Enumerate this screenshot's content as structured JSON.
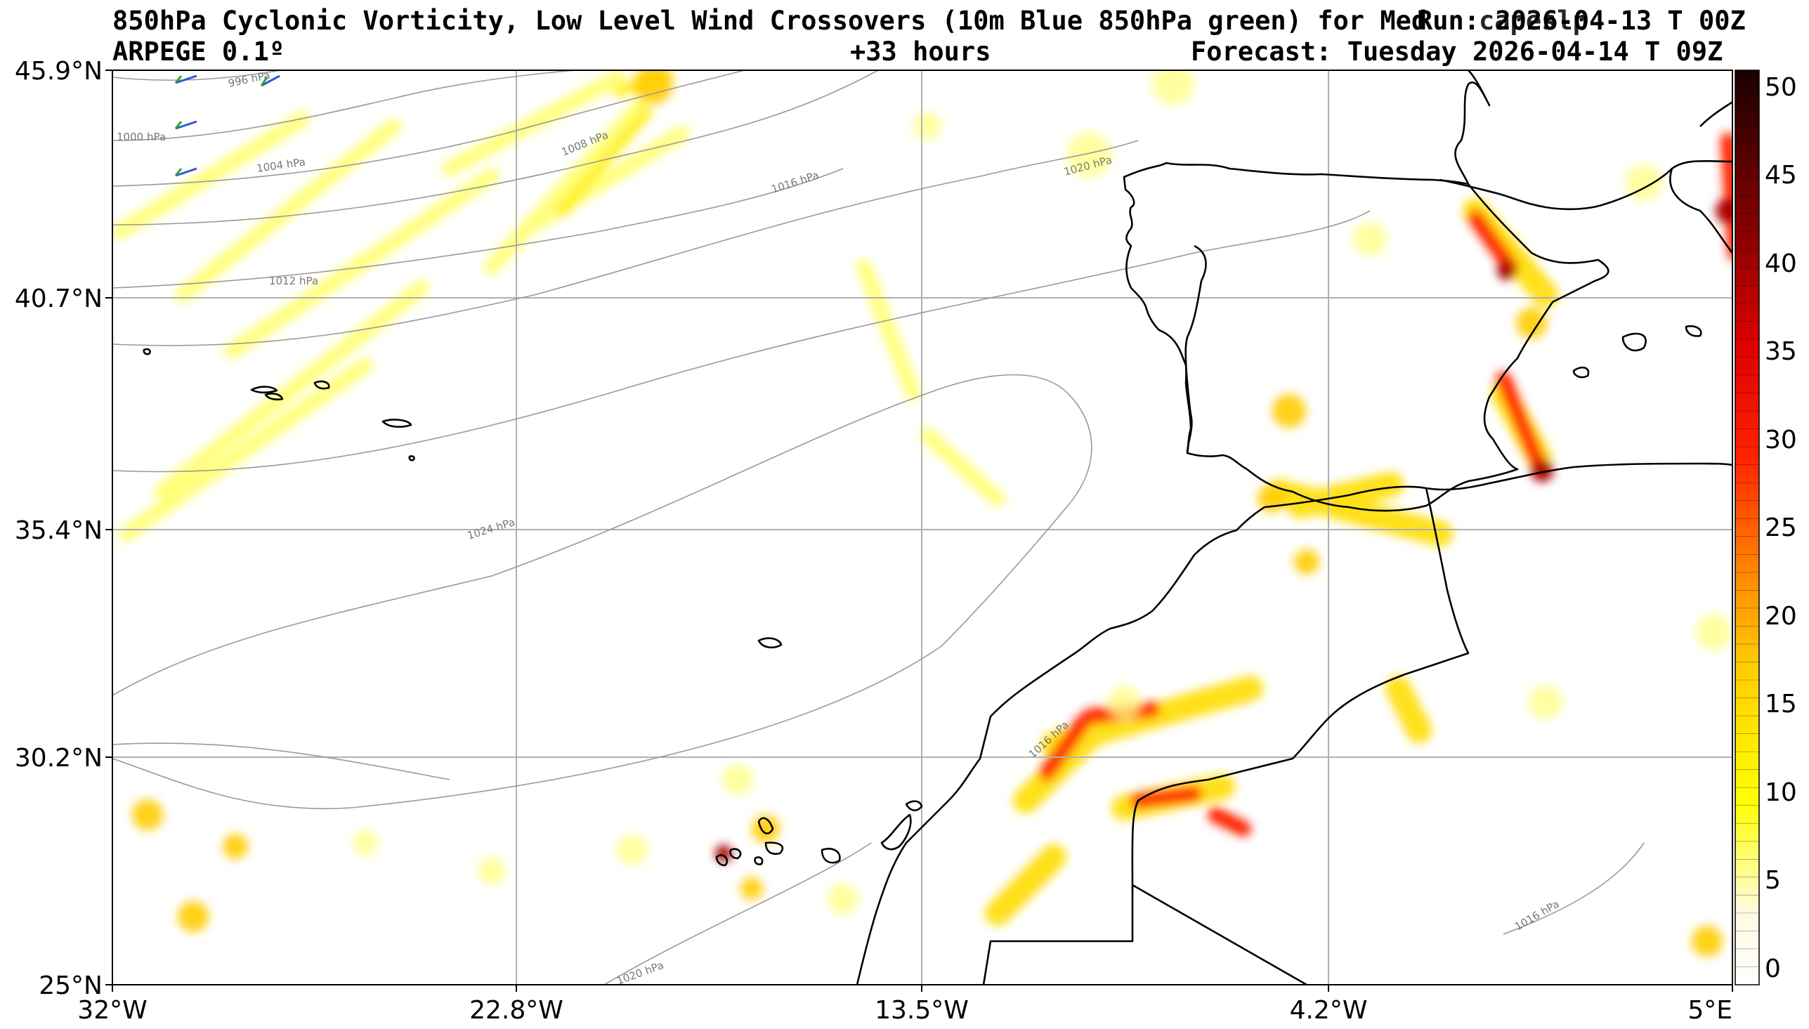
{
  "header": {
    "title_left": "850hPa Cyclonic Vorticity, Low Level Wind Crossovers (10m Blue 850hPa green) for Med",
    "title_right": "Run: 2026-04-13 T 00Z",
    "title_overlap": "capeslp",
    "model": "ARPEGE 0.1º",
    "lead_time": "+33 hours",
    "forecast_time": "Forecast: Tuesday 2026-04-14 T 09Z"
  },
  "axes": {
    "lat_labels": [
      "45.9°N",
      "40.7°N",
      "35.4°N",
      "30.2°N",
      "25°N"
    ],
    "lon_labels": [
      "32°W",
      "22.8°W",
      "13.5°W",
      "4.2°W",
      "5°E"
    ]
  },
  "colorbar": {
    "ticks": [
      "0",
      "5",
      "10",
      "15",
      "20",
      "25",
      "30",
      "35",
      "40",
      "45",
      "50"
    ],
    "min": 0,
    "max": 51
  },
  "isobars": {
    "labels": [
      "996 hPa",
      "1000 hPa",
      "1004 hPa",
      "1008 hPa",
      "1012 hPa",
      "1016 hPa",
      "1020 hPa",
      "1024 hPa",
      "1016 hPa",
      "1016 hPa",
      "1020 hPa"
    ]
  },
  "colors": {
    "coast": "#000000",
    "isobar": "#999999",
    "grid": "#b0b0b0",
    "wind_10m": "#3355dd",
    "wind_850": "#22aa22"
  }
}
